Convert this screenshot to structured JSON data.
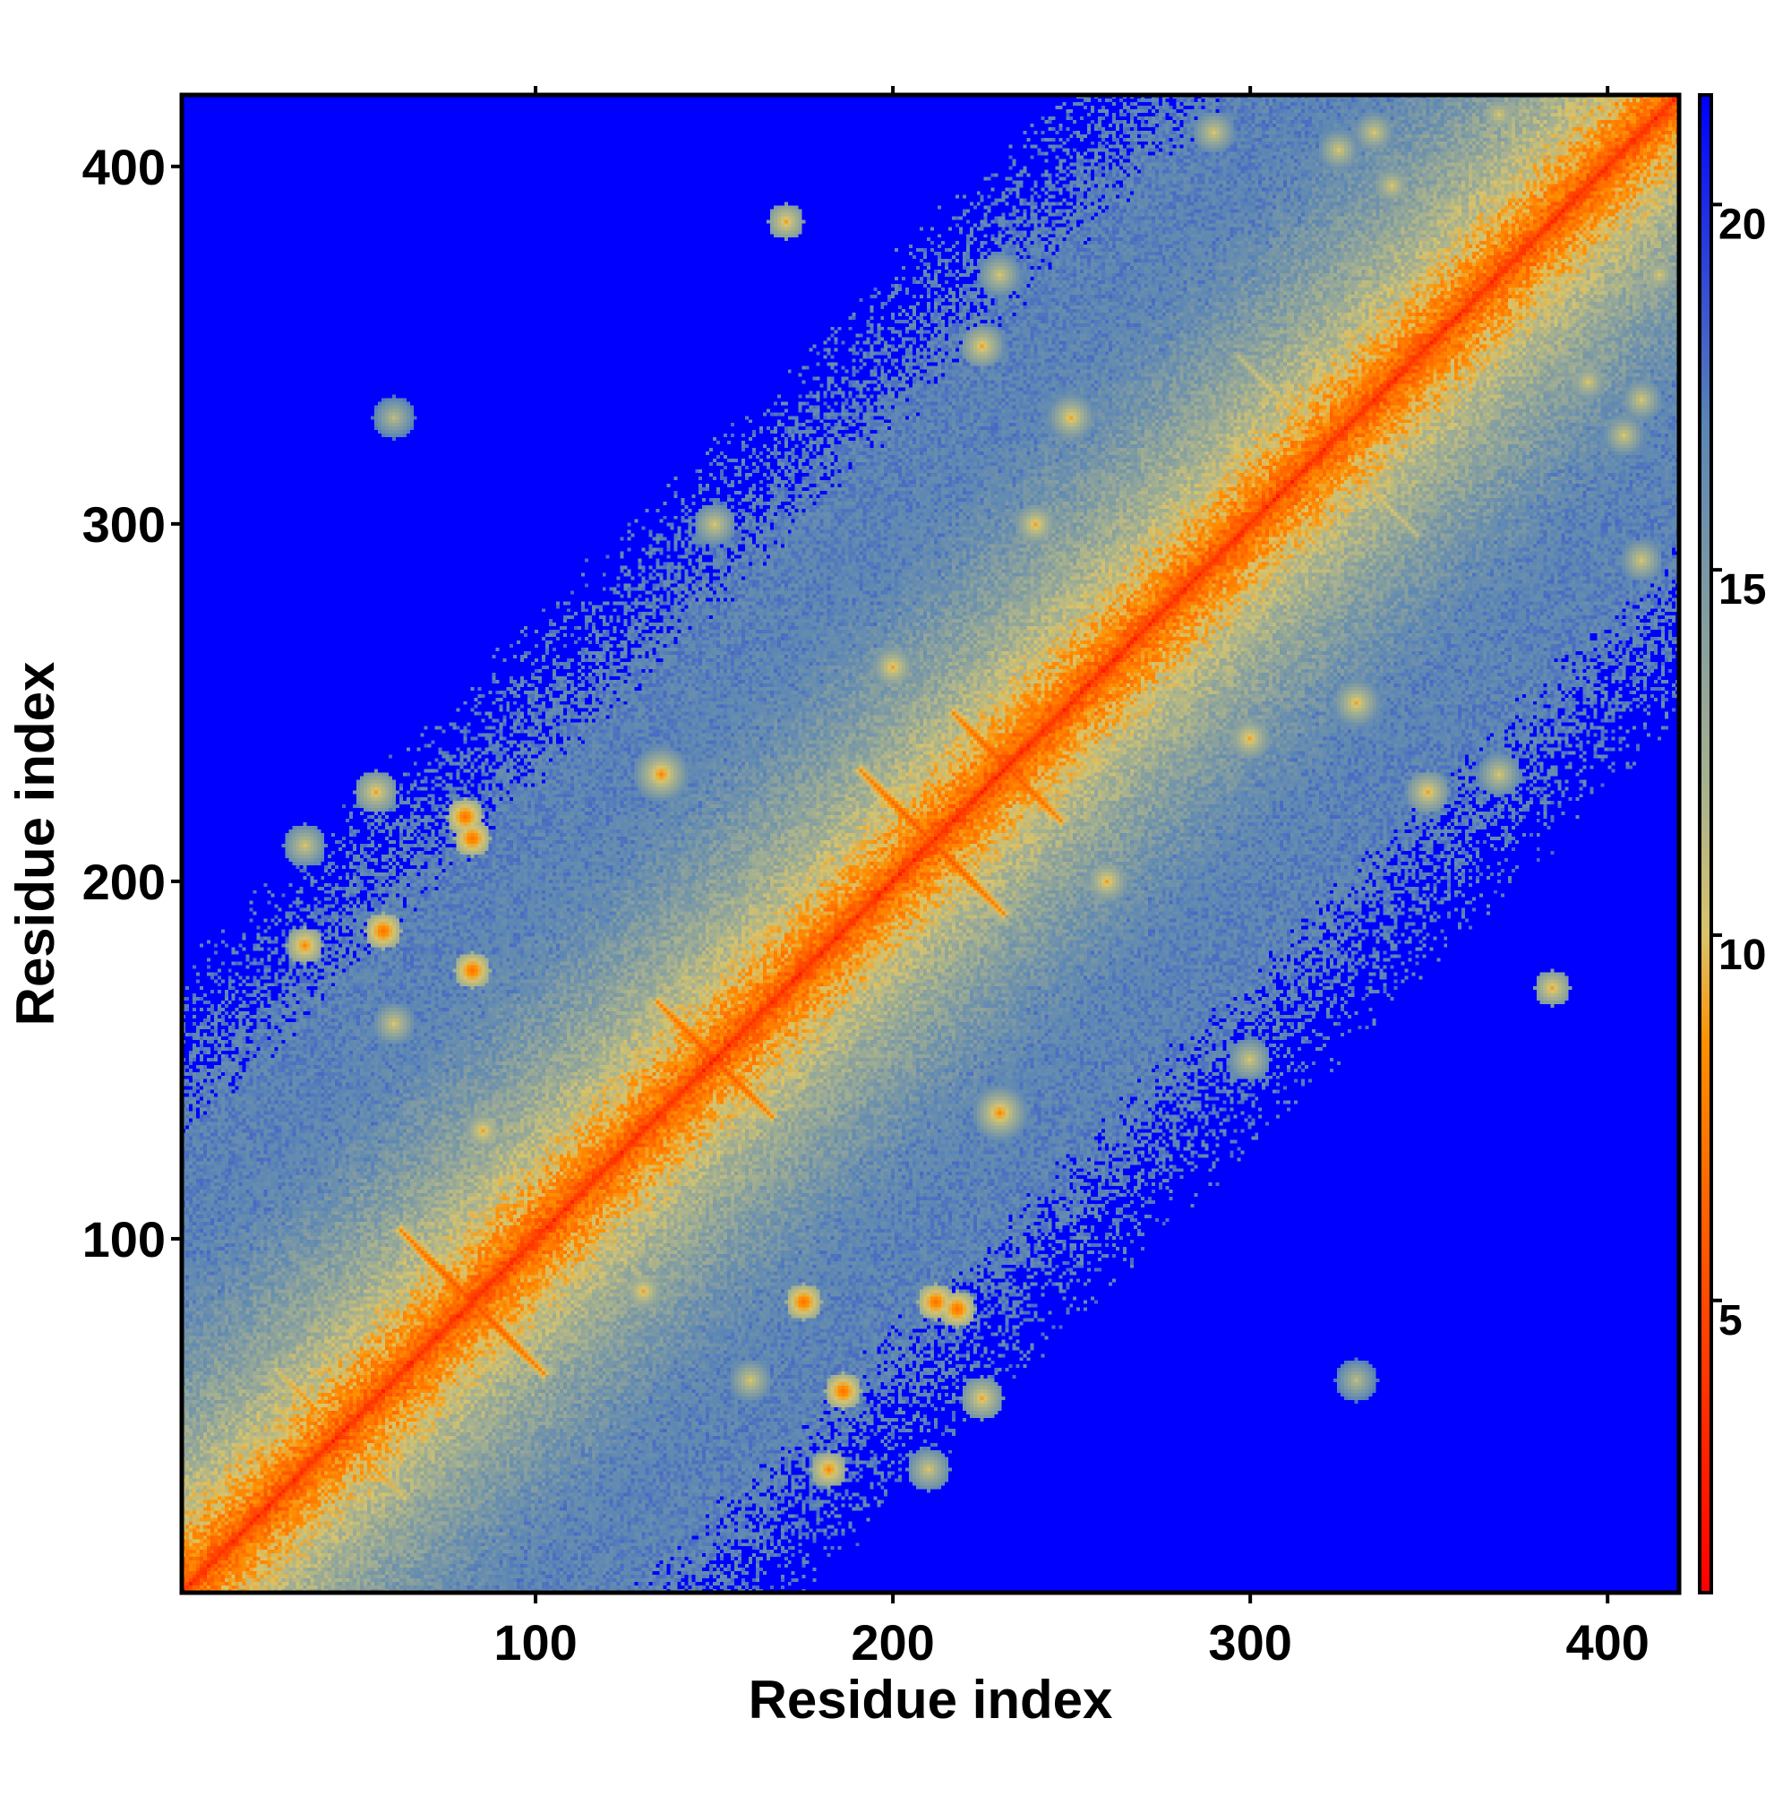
{
  "chart_data": {
    "type": "heatmap",
    "title": "",
    "xlabel": "Residue index",
    "ylabel": "Residue index",
    "xlim": [
      1,
      420
    ],
    "ylim": [
      1,
      420
    ],
    "x_ticks": [
      100,
      200,
      300,
      400
    ],
    "y_ticks": [
      100,
      200,
      300,
      400
    ],
    "x_tick_labels": [
      "100",
      "200",
      "300",
      "400"
    ],
    "y_tick_labels": [
      "100",
      "200",
      "300",
      "400"
    ],
    "matrix_size": 420,
    "colorbar": {
      "range": [
        1,
        21.5
      ],
      "ticks": [
        5,
        10,
        15,
        20
      ],
      "tick_labels": [
        "5",
        "10",
        "15",
        "20"
      ],
      "colors": [
        "#ff0000",
        "#ff4a00",
        "#ff9000",
        "#d9c46b",
        "#a8b28e",
        "#5b86b5",
        "#0000ff"
      ],
      "color_stops": [
        1,
        5,
        8.5,
        10,
        12,
        17,
        21.5
      ]
    },
    "cap_value": 21.5,
    "cap_color": "#0000ff",
    "diagonal_value": 3.8,
    "contact_features": [
      {
        "type": "cross",
        "center": [
          82,
          82
        ],
        "half_length": 20,
        "value": 5
      },
      {
        "type": "cross",
        "center": [
          150,
          150
        ],
        "half_length": 16,
        "value": 5
      },
      {
        "type": "cross",
        "center": [
          211,
          211
        ],
        "half_length": 20,
        "value": 5
      },
      {
        "type": "cross",
        "center": [
          232,
          232
        ],
        "half_length": 15,
        "value": 5
      },
      {
        "type": "cross",
        "center": [
          245,
          245
        ],
        "half_length": 12,
        "value": 7
      },
      {
        "type": "cross",
        "center": [
          322,
          322
        ],
        "half_length": 25,
        "value": 8
      },
      {
        "type": "cross",
        "center": [
          345,
          345
        ],
        "half_length": 18,
        "value": 9
      },
      {
        "type": "cross",
        "center": [
          45,
          45
        ],
        "half_length": 18,
        "value": 7
      },
      {
        "type": "cross",
        "center": [
          60,
          60
        ],
        "half_length": 12,
        "value": 8
      },
      {
        "type": "cross",
        "center": [
          100,
          100
        ],
        "half_length": 12,
        "value": 9
      },
      {
        "type": "cross",
        "center": [
          185,
          185
        ],
        "half_length": 15,
        "value": 8
      },
      {
        "type": "cross",
        "center": [
          268,
          268
        ],
        "half_length": 15,
        "value": 9
      },
      {
        "type": "blob",
        "center": [
          35,
          182
        ],
        "radius": 5,
        "value": 8
      },
      {
        "type": "blob",
        "center": [
          80,
          218
        ],
        "radius": 5,
        "value": 7
      },
      {
        "type": "blob",
        "center": [
          57,
          186
        ],
        "radius": 5,
        "value": 7
      },
      {
        "type": "blob",
        "center": [
          175,
          82
        ],
        "radius": 5,
        "value": 7
      },
      {
        "type": "blob",
        "center": [
          212,
          82
        ],
        "radius": 5,
        "value": 7
      },
      {
        "type": "blob",
        "center": [
          115,
          115
        ],
        "radius": 6,
        "value": 8
      },
      {
        "type": "blob",
        "center": [
          135,
          230
        ],
        "radius": 8,
        "value": 8
      },
      {
        "type": "blob",
        "center": [
          255,
          258
        ],
        "radius": 6,
        "value": 8
      },
      {
        "type": "blob",
        "center": [
          330,
          250
        ],
        "radius": 8,
        "value": 9
      },
      {
        "type": "blob",
        "center": [
          260,
          200
        ],
        "radius": 8,
        "value": 9
      },
      {
        "type": "blob",
        "center": [
          240,
          300
        ],
        "radius": 6,
        "value": 9
      },
      {
        "type": "blob",
        "center": [
          320,
          300
        ],
        "radius": 5,
        "value": 9
      },
      {
        "type": "blob",
        "center": [
          290,
          290
        ],
        "radius": 5,
        "value": 9
      },
      {
        "type": "blob",
        "center": [
          385,
          170
        ],
        "radius": 5,
        "value": 9
      },
      {
        "type": "blob",
        "center": [
          180,
          180
        ],
        "radius": 7,
        "value": 9
      },
      {
        "type": "blob",
        "center": [
          350,
          225
        ],
        "radius": 6,
        "value": 9
      },
      {
        "type": "blob",
        "center": [
          395,
          340
        ],
        "radius": 6,
        "value": 10
      },
      {
        "type": "blob",
        "center": [
          410,
          335
        ],
        "radius": 6,
        "value": 10
      },
      {
        "type": "blob",
        "center": [
          410,
          290
        ],
        "radius": 6,
        "value": 10
      },
      {
        "type": "blob",
        "center": [
          300,
          150
        ],
        "radius": 6,
        "value": 10
      },
      {
        "type": "blob",
        "center": [
          225,
          55
        ],
        "radius": 6,
        "value": 9
      },
      {
        "type": "blob",
        "center": [
          210,
          35
        ],
        "radius": 6,
        "value": 10
      },
      {
        "type": "blob",
        "center": [
          130,
          85
        ],
        "radius": 6,
        "value": 9
      },
      {
        "type": "blob",
        "center": [
          370,
          230
        ],
        "radius": 6,
        "value": 10
      },
      {
        "type": "blob",
        "center": [
          370,
          415
        ],
        "radius": 6,
        "value": 10
      },
      {
        "type": "blob",
        "center": [
          325,
          405
        ],
        "radius": 6,
        "value": 10
      },
      {
        "type": "blob",
        "center": [
          160,
          60
        ],
        "radius": 6,
        "value": 10
      },
      {
        "type": "blob",
        "center": [
          60,
          330
        ],
        "radius": 6,
        "value": 11
      }
    ]
  }
}
